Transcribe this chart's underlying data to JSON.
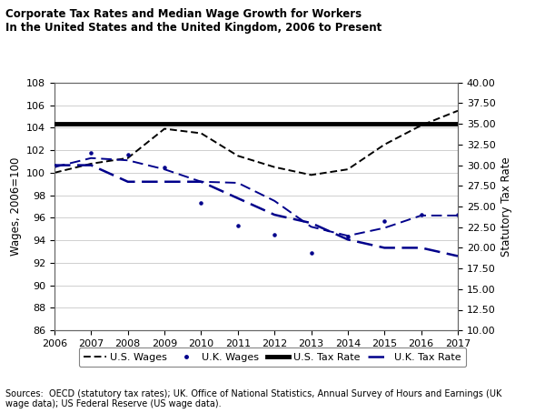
{
  "title_line1": "Corporate Tax Rates and Median Wage Growth for Workers",
  "title_line2": "In the United States and the United Kingdom, 2006 to Present",
  "years": [
    2006,
    2007,
    2008,
    2009,
    2010,
    2011,
    2012,
    2013,
    2014,
    2015,
    2016,
    2017
  ],
  "us_wages": [
    100.0,
    100.8,
    101.3,
    103.9,
    103.5,
    101.5,
    100.5,
    99.8,
    100.3,
    102.5,
    104.2,
    105.5
  ],
  "uk_wages_dash": [
    100.5,
    101.3,
    101.1,
    100.3,
    99.2,
    99.1,
    97.5,
    95.2,
    94.4,
    95.1,
    96.2,
    96.2
  ],
  "uk_wages_dot": [
    100.6,
    101.8,
    101.6,
    100.5,
    97.3,
    95.3,
    94.5,
    92.9,
    94.3,
    95.7,
    96.3,
    96.3
  ],
  "us_tax_rate": [
    35.0,
    35.0,
    35.0,
    35.0,
    35.0,
    35.0,
    35.0,
    35.0,
    35.0,
    35.0,
    35.0,
    35.0
  ],
  "uk_tax_rate": [
    30.0,
    30.0,
    28.0,
    28.0,
    28.0,
    26.0,
    24.0,
    23.0,
    21.0,
    20.0,
    20.0,
    19.0
  ],
  "ylabel_left": "Wages, 2006=100",
  "ylabel_right": "Statutory Tax Rate",
  "ylim_left": [
    86,
    108
  ],
  "ylim_right": [
    10,
    40
  ],
  "yticks_left": [
    86,
    88,
    90,
    92,
    94,
    96,
    98,
    100,
    102,
    104,
    106,
    108
  ],
  "yticks_right": [
    10.0,
    12.5,
    15.0,
    17.5,
    20.0,
    22.5,
    25.0,
    27.5,
    30.0,
    32.5,
    35.0,
    37.5,
    40.0
  ],
  "source_text": "Sources:  OECD (statutory tax rates); UK. Office of National Statistics, Annual Survey of Hours and Earnings (UK\nwage data); US Federal Reserve (US wage data).",
  "us_wages_color": "#000000",
  "uk_color": "#00008B",
  "us_tax_color": "#000000",
  "background_color": "#ffffff",
  "grid_color": "#c8c8c8"
}
